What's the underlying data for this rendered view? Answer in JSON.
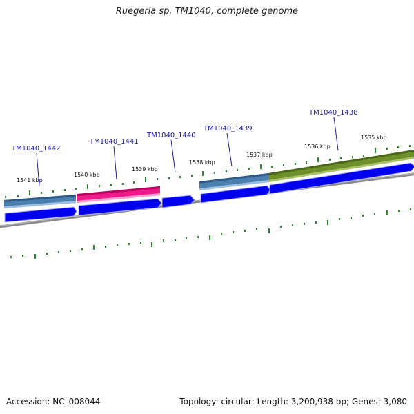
{
  "title": "Ruegeria sp. TM1040, complete genome",
  "footer": {
    "accession": "Accession: NC_008044",
    "summary": "Topology: circular; Length: 3,200,938 bp; Genes: 3,080"
  },
  "kbp_labels": [
    "1541 kbp",
    "1540 kbp",
    "1539 kbp",
    "1538 kbp",
    "1537 kbp",
    "1536 kbp",
    "1535 kbp"
  ],
  "gene_labels": [
    "TM1040_1442",
    "TM1040_1441",
    "TM1040_1440",
    "TM1040_1439",
    "TM1040_1438"
  ],
  "colors": {
    "cds": "#0000ee",
    "gene_steelblue": "#4a7fb0",
    "gene_pink": "#ee1a8a",
    "gene_olive": "#6f8f2a",
    "backbone": "#808080",
    "ticks": "#2a8a2a",
    "label": "#1a1aa0"
  }
}
